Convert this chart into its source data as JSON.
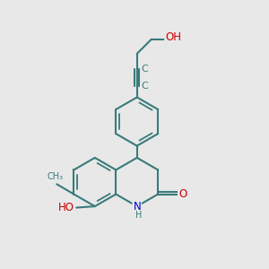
{
  "bg_color": "#e8e8e8",
  "bond_color": "#3a7a7a",
  "bond_lw": 1.5,
  "atom_colors": {
    "O": "#cc0000",
    "N": "#0000cc",
    "C": "#3a7a7a",
    "H": "#3a7a7a"
  },
  "font_size": 8.5,
  "figsize": [
    3.0,
    3.0
  ],
  "dpi": 100,
  "xlim": [
    0,
    10
  ],
  "ylim": [
    0,
    10
  ]
}
